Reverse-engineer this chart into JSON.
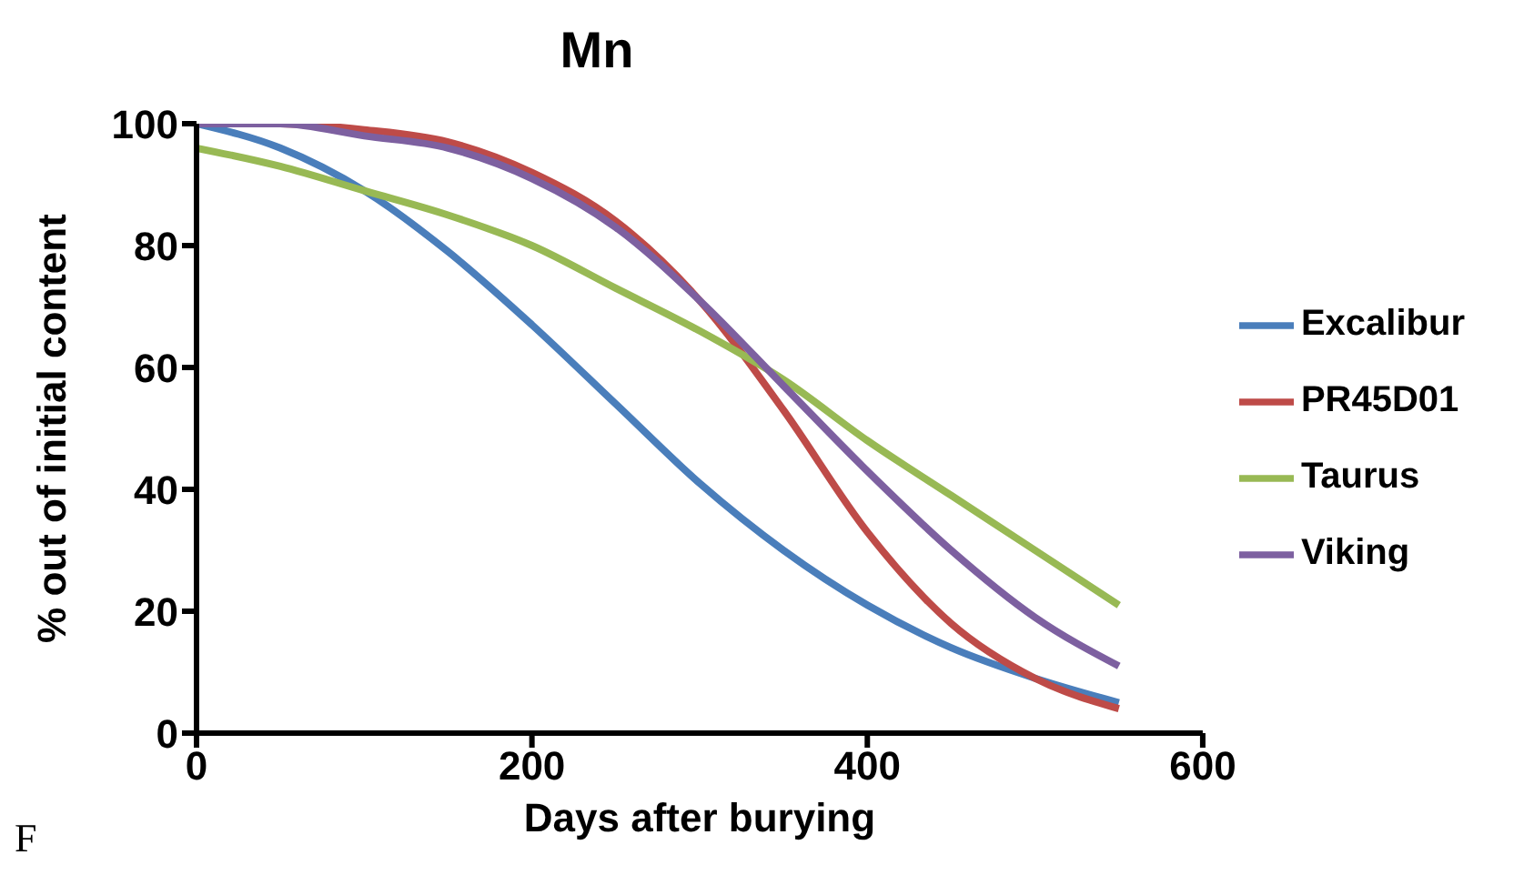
{
  "chart_data": {
    "type": "line",
    "title": "Mn",
    "xlabel": "Days after burying",
    "ylabel": "% out of  initial content",
    "annotations": [
      "F"
    ],
    "x": [
      0,
      50,
      100,
      150,
      200,
      250,
      300,
      350,
      400,
      450,
      500,
      550
    ],
    "series": [
      {
        "name": "Excalibur",
        "color": "#4a7ebb",
        "values": [
          100,
          96,
          89,
          79,
          67,
          54,
          41,
          30,
          21,
          14,
          9,
          5
        ]
      },
      {
        "name": "PR45D01",
        "color": "#be4b48",
        "values": [
          100,
          100,
          99,
          97,
          92,
          84,
          71,
          53,
          33,
          18,
          9,
          4
        ]
      },
      {
        "name": "Taurus",
        "color": "#98b954",
        "values": [
          96,
          93,
          89,
          85,
          80,
          73,
          66,
          58,
          48,
          39,
          30,
          21
        ]
      },
      {
        "name": "Viking",
        "color": "#7d60a0",
        "values": [
          100,
          100,
          98,
          96,
          91,
          83,
          71,
          57,
          43,
          30,
          19,
          11
        ]
      }
    ],
    "xlim": [
      0,
      600
    ],
    "xticks": [
      0,
      200,
      400,
      600
    ],
    "ylim": [
      0,
      100
    ],
    "yticks": [
      0,
      20,
      40,
      60,
      80,
      100
    ],
    "grid": false,
    "legend": "right",
    "marker": "none",
    "line_style": "solid"
  }
}
